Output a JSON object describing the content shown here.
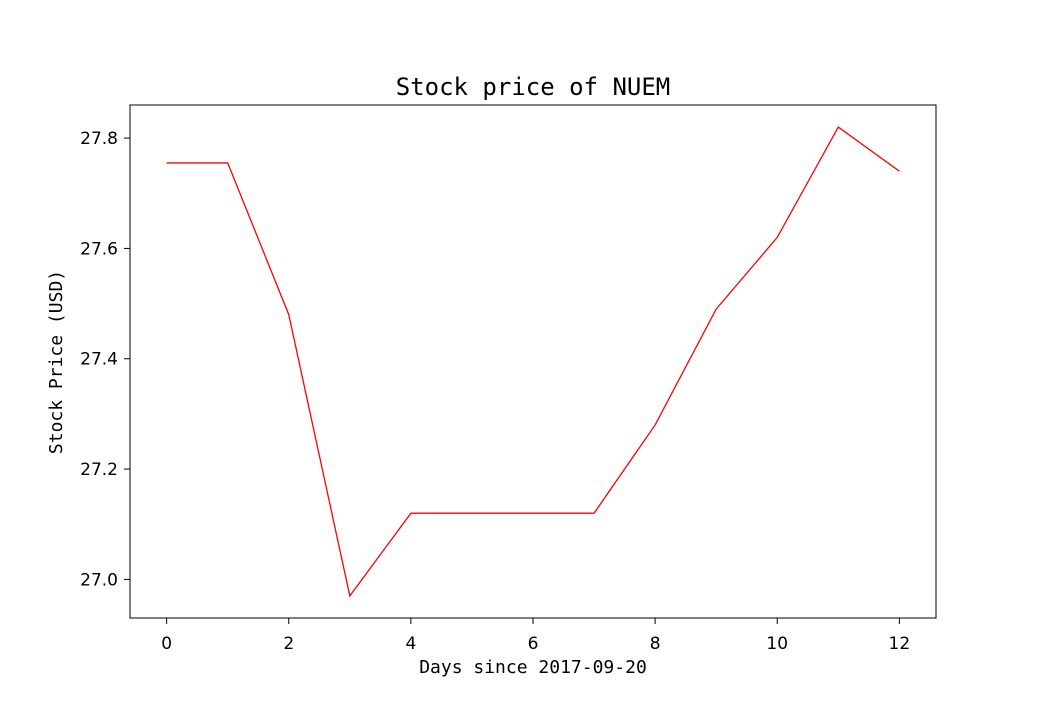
{
  "chart_data": {
    "type": "line",
    "title": "Stock price of NUEM",
    "xlabel": "Days since 2017-09-20",
    "ylabel": "Stock Price (USD)",
    "x": [
      0,
      1,
      2,
      3,
      4,
      5,
      6,
      7,
      8,
      9,
      10,
      11,
      12
    ],
    "series": [
      {
        "values": [
          27.755,
          27.755,
          27.48,
          26.97,
          27.12,
          27.12,
          27.12,
          27.12,
          27.28,
          27.49,
          27.62,
          27.82,
          27.74
        ],
        "color": "#ff0000"
      }
    ],
    "xlim": [
      -0.6,
      12.6
    ],
    "ylim": [
      26.93,
      27.86
    ],
    "xticks": [
      0,
      2,
      4,
      6,
      8,
      10,
      12
    ],
    "yticks": [
      27.0,
      27.2,
      27.4,
      27.6,
      27.8
    ],
    "ytick_labels": [
      "27.0",
      "27.2",
      "27.4",
      "27.6",
      "27.8"
    ],
    "grid": false,
    "legend": "none"
  }
}
